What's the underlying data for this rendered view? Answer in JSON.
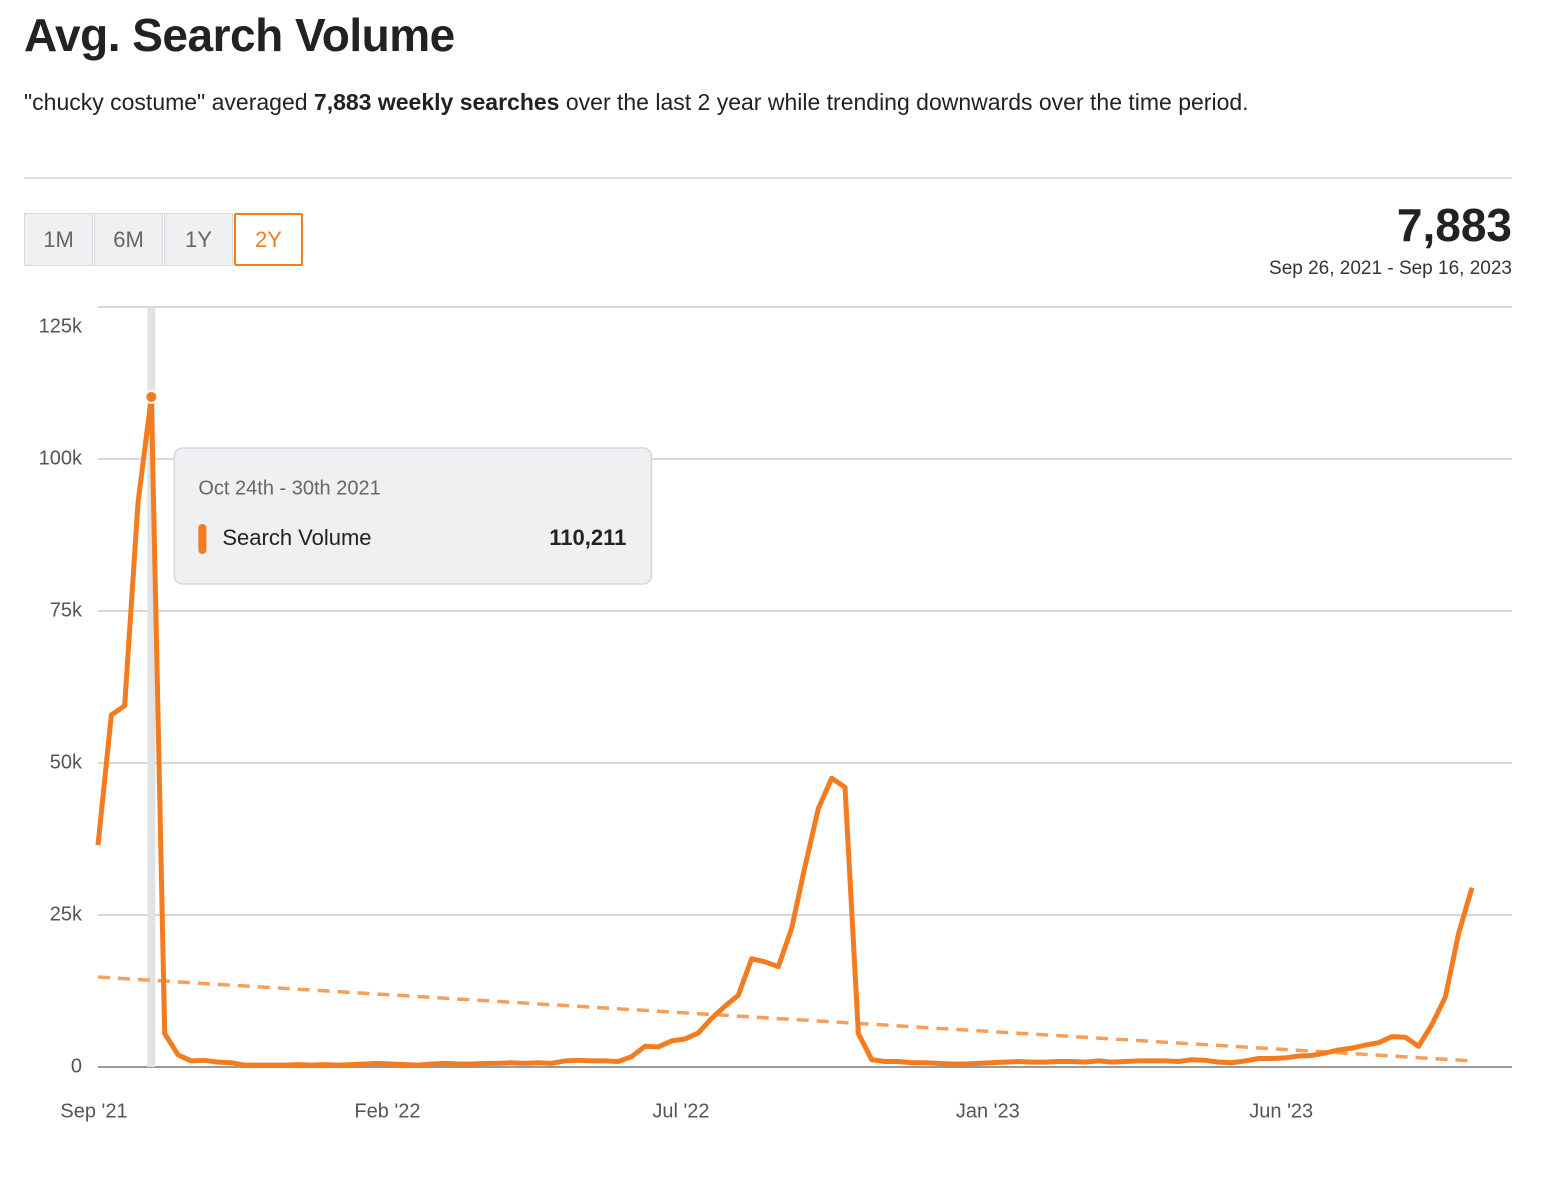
{
  "header": {
    "title": "Avg. Search Volume",
    "summary": [
      "\"chucky costume\" averaged ",
      "7,883 weekly searches",
      " over the last 2 year while trending downwards over the time period."
    ],
    "ranges": [
      "1M",
      "6M",
      "1Y",
      "2Y"
    ],
    "selected_range": "2Y",
    "total": "7,883",
    "period": "Sep 26, 2021 - Sep 16, 2023"
  },
  "chart_data": {
    "type": "line",
    "categories": [
      "Sep '21",
      null,
      null,
      null,
      null,
      null,
      null,
      null,
      null,
      null,
      null,
      null,
      null,
      null,
      null,
      null,
      null,
      null,
      null,
      null,
      null,
      null,
      "Feb '22",
      null,
      null,
      null,
      null,
      null,
      null,
      null,
      null,
      null,
      null,
      null,
      null,
      null,
      null,
      null,
      null,
      null,
      null,
      null,
      null,
      null,
      "Jul '22",
      null,
      null,
      null,
      null,
      null,
      null,
      null,
      null,
      null,
      null,
      null,
      null,
      null,
      null,
      null,
      null,
      null,
      null,
      null,
      null,
      null,
      null,
      "Jan '23",
      null,
      null,
      null,
      null,
      null,
      null,
      null,
      null,
      null,
      null,
      null,
      null,
      null,
      null,
      null,
      null,
      null,
      null,
      null,
      null,
      null,
      "Jun '23",
      null,
      null,
      null,
      null,
      null,
      null,
      null,
      null,
      null,
      null,
      null,
      null,
      null,
      null
    ],
    "series": [
      {
        "name": "Search Volume",
        "color": "#f47c20",
        "values": [
          36500,
          57900,
          59400,
          92800,
          110211,
          5500,
          2000,
          1000,
          1100,
          800,
          700,
          300,
          300,
          300,
          300,
          400,
          300,
          400,
          300,
          400,
          500,
          600,
          500,
          400,
          300,
          500,
          600,
          500,
          500,
          600,
          600,
          700,
          600,
          700,
          600,
          1000,
          1100,
          1000,
          1000,
          900,
          1700,
          3400,
          3300,
          4300,
          4600,
          5600,
          8000,
          10000,
          11800,
          17800,
          17300,
          16500,
          22800,
          33000,
          42500,
          47500,
          46000,
          5500,
          1200,
          900,
          900,
          700,
          700,
          600,
          500,
          500,
          600,
          700,
          800,
          900,
          800,
          800,
          900,
          900,
          800,
          1000,
          800,
          900,
          1000,
          1000,
          1000,
          900,
          1200,
          1100,
          800,
          700,
          1000,
          1400,
          1400,
          1500,
          1800,
          1900,
          2300,
          2800,
          3100,
          3600,
          4000,
          5000,
          4900,
          3400,
          7000,
          11500,
          22000,
          29500
        ],
        "value_labels": [
          null,
          null,
          null,
          null,
          "110,211",
          null,
          null,
          null,
          null,
          null,
          null,
          null,
          null,
          null,
          null,
          null,
          null,
          null,
          null,
          null,
          null,
          null,
          null,
          null,
          null,
          null,
          null,
          null,
          null,
          null,
          null,
          null,
          null,
          null,
          null,
          null,
          null,
          null,
          null,
          null,
          null,
          null,
          null,
          null,
          null,
          null,
          null,
          null,
          null,
          null,
          null,
          null,
          null,
          null,
          null,
          null,
          null,
          null,
          null,
          null,
          null,
          null,
          null,
          null,
          null,
          null,
          null,
          null,
          null,
          null,
          null,
          null,
          null,
          null,
          null,
          null,
          null,
          null,
          null,
          null,
          null,
          null,
          null,
          null,
          null,
          null,
          null,
          null,
          null,
          null,
          null,
          null,
          null,
          null,
          null,
          null,
          null,
          null,
          null,
          null,
          null,
          null,
          null,
          null
        ]
      }
    ],
    "trendline": {
      "color": "#f5a05a",
      "values": [
        14800,
        1000
      ]
    },
    "tooltip": {
      "title": "Oct 24th - 30th 2021"
    },
    "ylim": [
      0,
      125000
    ],
    "yticks": [
      0,
      {
        "value": 25000,
        "label": "25k"
      },
      {
        "value": 50000,
        "label": "50k"
      },
      {
        "value": 75000,
        "label": "75k"
      },
      {
        "value": 100000,
        "label": "100k"
      },
      {
        "value": 125000,
        "label": "125k"
      }
    ],
    "grid": true
  }
}
